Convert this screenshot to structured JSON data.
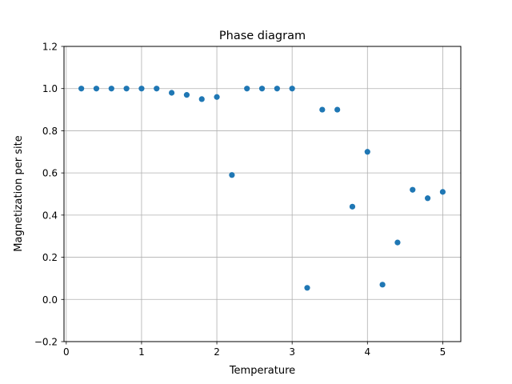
{
  "chart_data": {
    "type": "scatter",
    "title": "Phase diagram",
    "xlabel": "Temperature",
    "ylabel": "Magnetization per site",
    "xlim": [
      -0.03,
      5.24
    ],
    "ylim": [
      -0.2,
      1.2
    ],
    "x_ticks": [
      0,
      1,
      2,
      3,
      4,
      5
    ],
    "x_tick_labels": [
      "0",
      "1",
      "2",
      "3",
      "4",
      "5"
    ],
    "y_ticks": [
      -0.2,
      0.0,
      0.2,
      0.4,
      0.6,
      0.8,
      1.0,
      1.2
    ],
    "y_tick_labels": [
      "−0.2",
      "0.0",
      "0.2",
      "0.4",
      "0.6",
      "0.8",
      "1.0",
      "1.2"
    ],
    "grid": true,
    "marker_color": "#1f77b4",
    "series": [
      {
        "x": [
          0.2,
          0.4,
          0.6,
          0.8,
          1.0,
          1.2,
          1.4,
          1.6,
          1.8,
          2.0,
          2.2,
          2.4,
          2.6,
          2.8,
          3.0,
          3.2,
          3.4,
          3.6,
          3.8,
          4.0,
          4.2,
          4.4,
          4.6,
          4.8,
          5.0
        ],
        "y": [
          1.0,
          1.0,
          1.0,
          1.0,
          1.0,
          1.0,
          0.98,
          0.97,
          0.95,
          0.96,
          0.59,
          1.0,
          1.0,
          1.0,
          1.0,
          0.055,
          0.9,
          0.9,
          0.44,
          0.7,
          0.07,
          0.27,
          0.52,
          0.48,
          0.51
        ]
      }
    ]
  }
}
